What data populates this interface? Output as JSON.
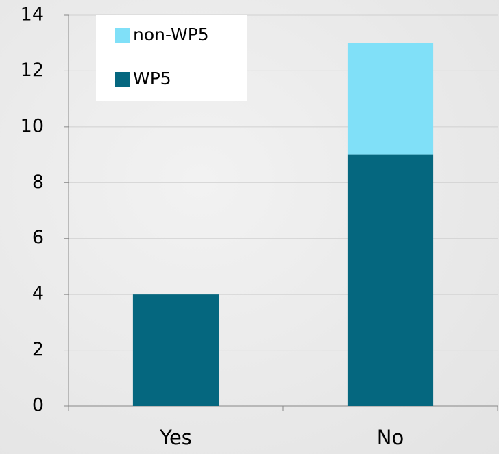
{
  "chart_data": {
    "type": "stacked_bar",
    "categories": [
      "Yes",
      "No"
    ],
    "series": [
      {
        "name": "WP5",
        "color": "#05677f",
        "values": [
          4,
          9
        ]
      },
      {
        "name": "non-WP5",
        "color": "#80e0f8",
        "values": [
          0,
          4
        ]
      }
    ],
    "ylim": [
      0,
      14
    ],
    "yticks": [
      0,
      2,
      4,
      6,
      8,
      10,
      12,
      14
    ],
    "grid": true,
    "legend": "upper left"
  }
}
